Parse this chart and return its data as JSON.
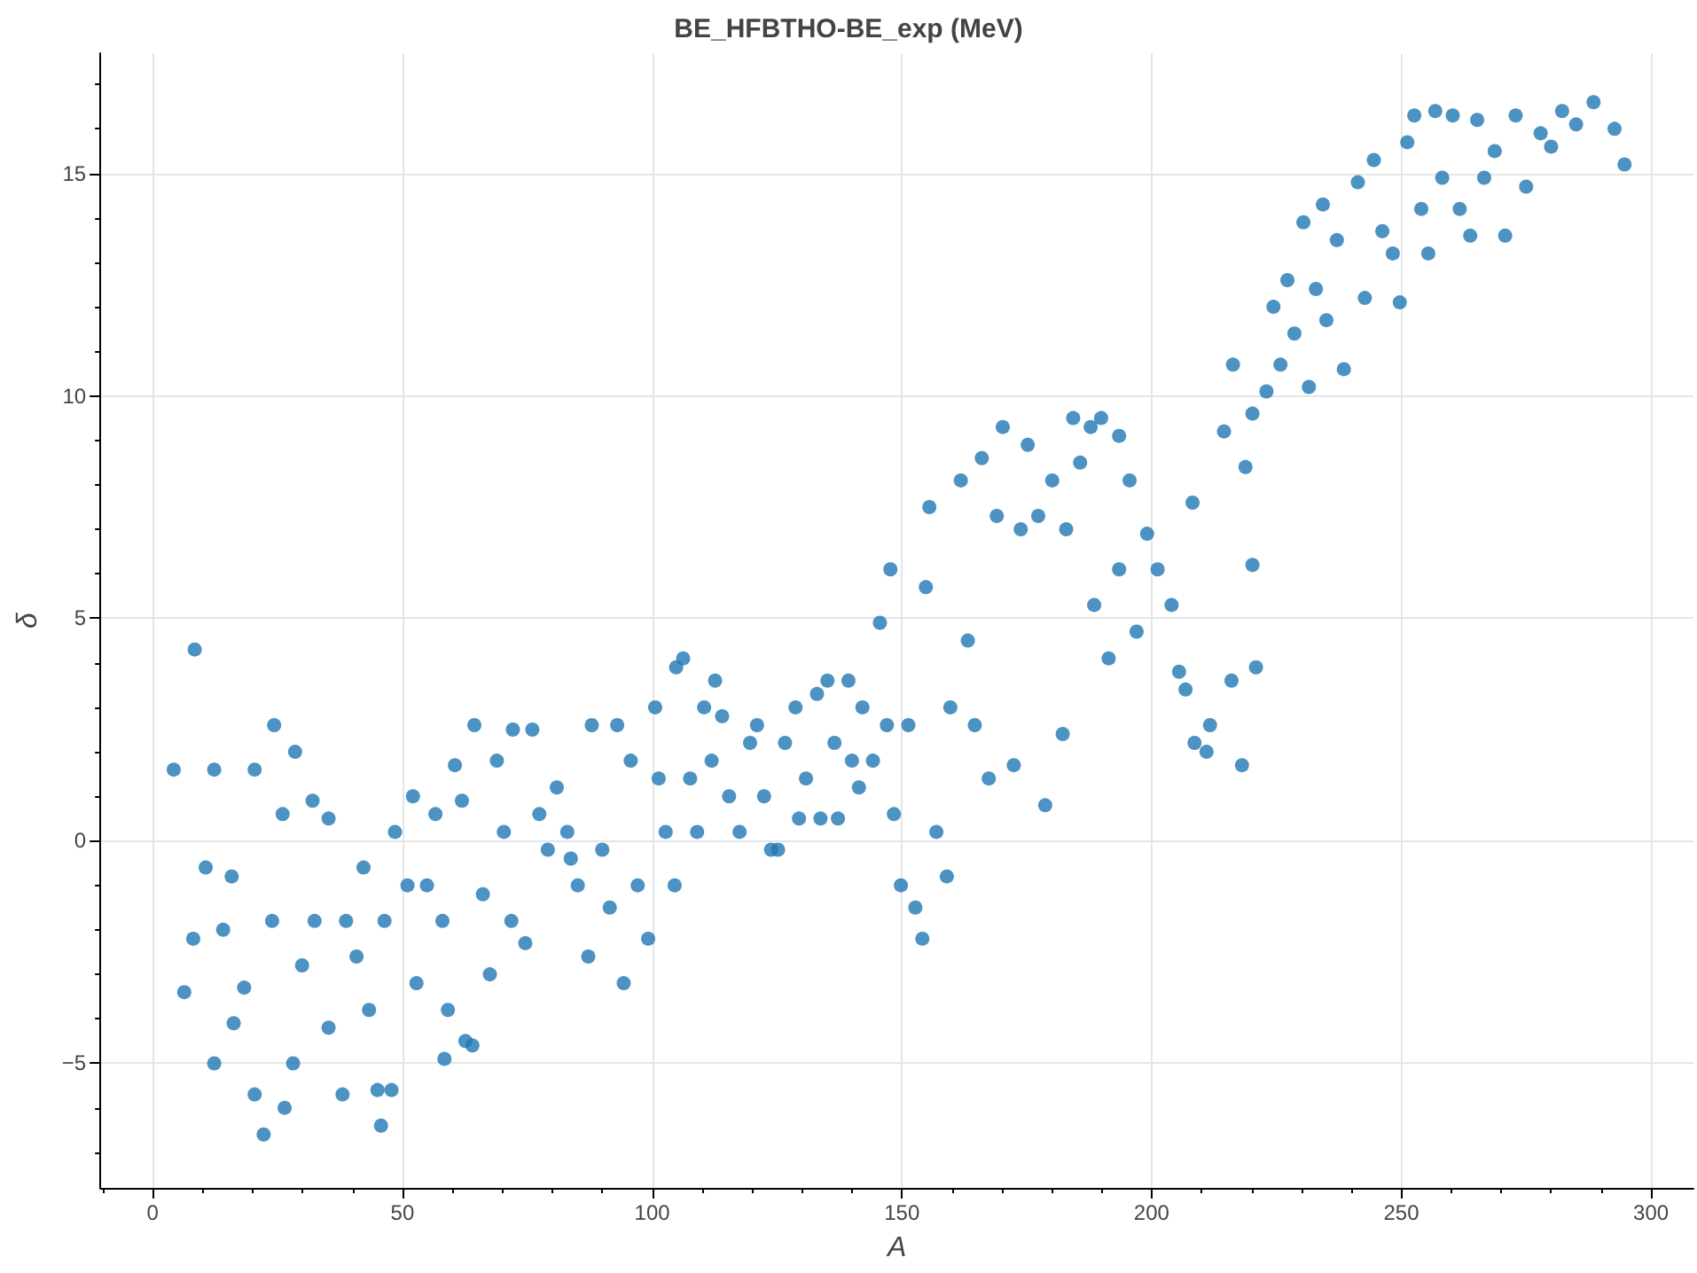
{
  "chart_data": {
    "type": "scatter",
    "title": "BE_HFBTHO-BE_exp (MeV)",
    "xlabel": "A",
    "ylabel": "δ",
    "xlim": [
      -10.5,
      308.5
    ],
    "xticks": [
      0,
      50,
      100,
      150,
      200,
      250,
      300
    ],
    "ylim": [
      -7.8,
      17.7
    ],
    "yticks": [
      -5,
      0,
      5,
      10,
      15
    ],
    "grid": true,
    "marker": "circle",
    "series": [
      {
        "color": "#1f77b4",
        "x": [
          4.2,
          8.4,
          8.1,
          6.3,
          10.6,
          12.3,
          12.3,
          14.1,
          15.8,
          16.2,
          18.3,
          20.4,
          20.4,
          22.2,
          24.3,
          23.9,
          26.0,
          26.4,
          28.5,
          28.1,
          29.9,
          32.0,
          32.4,
          35.2,
          35.2,
          38.0,
          38.7,
          40.8,
          42.2,
          43.3,
          45.0,
          45.7,
          46.4,
          48.5,
          47.8,
          51.0,
          52.1,
          52.8,
          54.9,
          56.6,
          58.0,
          58.4,
          59.1,
          60.5,
          61.9,
          62.6,
          64.4,
          64.0,
          66.1,
          67.5,
          68.9,
          72.1,
          70.3,
          71.8,
          74.6,
          76.0,
          77.4,
          79.1,
          80.9,
          83.0,
          83.7,
          85.1,
          87.2,
          87.9,
          90.0,
          91.5,
          93.0,
          94.3,
          95.7,
          97.1,
          99.2,
          100.6,
          101.3,
          102.7,
          104.5,
          104.8,
          106.2,
          107.6,
          109.0,
          110.4,
          112.6,
          111.9,
          114.0,
          115.4,
          117.5,
          119.6,
          121.0,
          122.4,
          123.8,
          125.2,
          126.6,
          128.7,
          129.4,
          130.8,
          133.0,
          133.7,
          135.1,
          136.5,
          137.2,
          139.3,
          140.0,
          141.4,
          142.1,
          144.2,
          145.6,
          147.0,
          147.7,
          148.4,
          149.8,
          151.3,
          152.7,
          154.1,
          154.8,
          155.5,
          156.9,
          159.0,
          159.7,
          161.8,
          163.2,
          164.6,
          166.0,
          167.4,
          169.0,
          170.2,
          172.4,
          173.8,
          175.2,
          177.3,
          178.7,
          180.1,
          182.2,
          182.9,
          184.3,
          185.7,
          187.8,
          188.5,
          189.9,
          191.4,
          193.5,
          193.5,
          195.6,
          197.0,
          199.1,
          201.2,
          204.0,
          205.5,
          206.8,
          208.2,
          208.6,
          211.0,
          211.7,
          214.5,
          216.0,
          216.3,
          218.1,
          218.8,
          220.2,
          220.2,
          220.9,
          223.0,
          224.4,
          225.8,
          227.2,
          228.6,
          230.4,
          231.5,
          232.9,
          234.3,
          235.0,
          237.1,
          238.5,
          241.3,
          242.7,
          244.5,
          246.2,
          248.3,
          249.7,
          251.2,
          252.6,
          254.0,
          255.4,
          256.8,
          258.2,
          260.3,
          261.7,
          263.8,
          265.2,
          266.6,
          268.7,
          270.8,
          272.9,
          275.0,
          277.9,
          280.0,
          282.2,
          285.0,
          288.5,
          292.7,
          294.7
        ],
        "values": [
          1.6,
          4.3,
          -2.2,
          -3.4,
          -0.6,
          1.6,
          -5.0,
          -2.0,
          -0.8,
          -4.1,
          -3.3,
          1.6,
          -5.7,
          -6.6,
          2.6,
          -1.8,
          0.6,
          -6.0,
          2.0,
          -5.0,
          -2.8,
          0.9,
          -1.8,
          0.5,
          -4.2,
          -5.7,
          -1.8,
          -2.6,
          -0.6,
          -3.8,
          -5.6,
          -6.4,
          -1.8,
          0.2,
          -5.6,
          -1.0,
          1.0,
          -3.2,
          -1.0,
          0.6,
          -1.8,
          -4.9,
          -3.8,
          1.7,
          0.9,
          -4.5,
          2.6,
          -4.6,
          -1.2,
          -3.0,
          1.8,
          2.5,
          0.2,
          -1.8,
          -2.3,
          2.5,
          0.6,
          -0.2,
          1.2,
          0.2,
          -0.4,
          -1.0,
          -2.6,
          2.6,
          -0.2,
          -1.5,
          2.6,
          -3.2,
          1.8,
          -1.0,
          -2.2,
          3.0,
          1.4,
          0.2,
          -1.0,
          3.9,
          4.1,
          1.4,
          0.2,
          3.0,
          3.6,
          1.8,
          2.8,
          1.0,
          0.2,
          2.2,
          2.6,
          1.0,
          -0.2,
          -0.2,
          2.2,
          3.0,
          0.5,
          1.4,
          3.3,
          0.5,
          3.6,
          2.2,
          0.5,
          3.6,
          1.8,
          1.2,
          3.0,
          1.8,
          4.9,
          2.6,
          6.1,
          0.6,
          -1.0,
          2.6,
          -1.5,
          -2.2,
          5.7,
          7.5,
          0.2,
          -0.8,
          3.0,
          8.1,
          4.5,
          2.6,
          8.6,
          1.4,
          7.3,
          9.3,
          1.7,
          7.0,
          8.9,
          7.3,
          0.8,
          8.1,
          2.4,
          7.0,
          9.5,
          8.5,
          9.3,
          5.3,
          9.5,
          4.1,
          9.1,
          6.1,
          8.1,
          4.7,
          6.9,
          6.1,
          5.3,
          3.8,
          3.4,
          7.6,
          2.2,
          2.0,
          2.6,
          9.2,
          3.6,
          10.7,
          1.7,
          8.4,
          9.6,
          6.2,
          3.9,
          10.1,
          12.0,
          10.7,
          12.6,
          11.4,
          13.9,
          10.2,
          12.4,
          14.3,
          11.7,
          13.5,
          10.6,
          14.8,
          12.2,
          15.3,
          13.7,
          13.2,
          12.1,
          15.7,
          16.3,
          14.2,
          13.2,
          16.4,
          14.9,
          16.3,
          14.2,
          13.6,
          16.2,
          14.9,
          15.5,
          13.6,
          16.3,
          14.7,
          15.9,
          15.6,
          16.4,
          16.1,
          16.6,
          16.0,
          15.2
        ]
      }
    ]
  }
}
